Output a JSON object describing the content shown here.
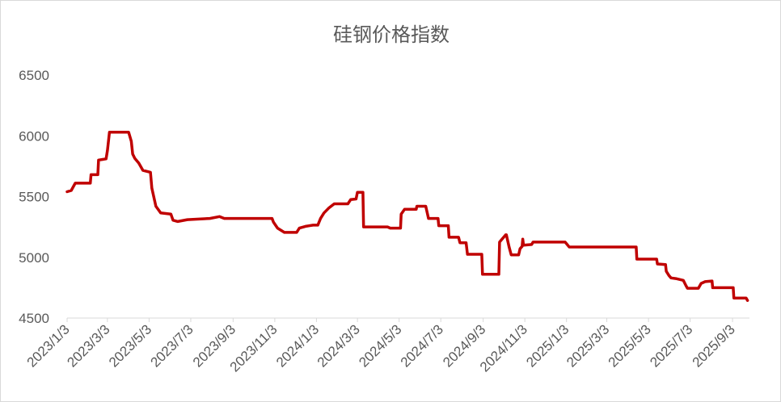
{
  "chart_data": {
    "type": "line",
    "title": "硅钢价格指数",
    "xlabel": "",
    "ylabel": "",
    "ylim": [
      4500,
      6500
    ],
    "yticks": [
      4500,
      5000,
      5500,
      6000,
      6500
    ],
    "xticks": [
      "2023/1/3",
      "2023/3/3",
      "2023/5/3",
      "2023/7/3",
      "2023/9/3",
      "2023/11/3",
      "2024/1/3",
      "2024/3/3",
      "2024/5/3",
      "2024/7/3",
      "2024/9/3",
      "2024/11/3",
      "2025/1/3",
      "2025/3/3",
      "2025/5/3",
      "2025/7/3",
      "2025/9/3"
    ],
    "grid": false,
    "legend": "none",
    "color": "#c00000",
    "series": [
      {
        "points": [
          [
            "2023/1/3",
            5540
          ],
          [
            "2023/1/9",
            5550
          ],
          [
            "2023/1/15",
            5610
          ],
          [
            "2023/2/6",
            5610
          ],
          [
            "2023/2/7",
            5680
          ],
          [
            "2023/2/17",
            5680
          ],
          [
            "2023/2/18",
            5800
          ],
          [
            "2023/3/1",
            5810
          ],
          [
            "2023/3/3",
            5880
          ],
          [
            "2023/3/6",
            6030
          ],
          [
            "2023/4/3",
            6030
          ],
          [
            "2023/4/7",
            5955
          ],
          [
            "2023/4/9",
            5850
          ],
          [
            "2023/4/12",
            5815
          ],
          [
            "2023/4/18",
            5775
          ],
          [
            "2023/4/24",
            5715
          ],
          [
            "2023/5/5",
            5700
          ],
          [
            "2023/5/7",
            5570
          ],
          [
            "2023/5/13",
            5420
          ],
          [
            "2023/5/20",
            5365
          ],
          [
            "2023/6/4",
            5355
          ],
          [
            "2023/6/7",
            5305
          ],
          [
            "2023/6/14",
            5295
          ],
          [
            "2023/6/28",
            5310
          ],
          [
            "2023/7/31",
            5320
          ],
          [
            "2023/8/14",
            5335
          ],
          [
            "2023/8/21",
            5320
          ],
          [
            "2023/10/30",
            5320
          ],
          [
            "2023/11/1",
            5290
          ],
          [
            "2023/11/7",
            5240
          ],
          [
            "2023/11/17",
            5205
          ],
          [
            "2023/12/5",
            5205
          ],
          [
            "2023/12/9",
            5240
          ],
          [
            "2023/12/18",
            5255
          ],
          [
            "2023/12/29",
            5265
          ],
          [
            "2024/1/5",
            5265
          ],
          [
            "2024/1/9",
            5320
          ],
          [
            "2024/1/14",
            5365
          ],
          [
            "2024/1/21",
            5405
          ],
          [
            "2024/1/29",
            5440
          ],
          [
            "2024/2/18",
            5440
          ],
          [
            "2024/2/22",
            5475
          ],
          [
            "2024/3/1",
            5480
          ],
          [
            "2024/3/3",
            5535
          ],
          [
            "2024/3/11",
            5535
          ],
          [
            "2024/3/12",
            5250
          ],
          [
            "2024/4/16",
            5250
          ],
          [
            "2024/4/20",
            5240
          ],
          [
            "2024/5/5",
            5240
          ],
          [
            "2024/5/6",
            5355
          ],
          [
            "2024/5/11",
            5395
          ],
          [
            "2024/5/28",
            5395
          ],
          [
            "2024/5/29",
            5420
          ],
          [
            "2024/6/11",
            5420
          ],
          [
            "2024/6/15",
            5320
          ],
          [
            "2024/6/29",
            5320
          ],
          [
            "2024/6/30",
            5260
          ],
          [
            "2024/7/14",
            5260
          ],
          [
            "2024/7/15",
            5165
          ],
          [
            "2024/7/29",
            5165
          ],
          [
            "2024/7/31",
            5120
          ],
          [
            "2024/8/9",
            5120
          ],
          [
            "2024/8/11",
            5025
          ],
          [
            "2024/9/1",
            5025
          ],
          [
            "2024/9/2",
            4860
          ],
          [
            "2024/9/26",
            4860
          ],
          [
            "2024/9/27",
            5125
          ],
          [
            "2024/10/6",
            5185
          ],
          [
            "2024/10/7",
            5185
          ],
          [
            "2024/10/11",
            5085
          ],
          [
            "2024/10/14",
            5020
          ],
          [
            "2024/10/25",
            5020
          ],
          [
            "2024/10/27",
            5070
          ],
          [
            "2024/10/30",
            5090
          ],
          [
            "2024/10/31",
            5150
          ],
          [
            "2024/11/1",
            5100
          ],
          [
            "2024/11/13",
            5105
          ],
          [
            "2024/11/15",
            5125
          ],
          [
            "2025/1/1",
            5125
          ],
          [
            "2025/1/7",
            5085
          ],
          [
            "2025/4/15",
            5085
          ],
          [
            "2025/4/16",
            4985
          ],
          [
            "2025/5/15",
            4985
          ],
          [
            "2025/5/16",
            4945
          ],
          [
            "2025/5/28",
            4940
          ],
          [
            "2025/5/29",
            4885
          ],
          [
            "2025/6/2",
            4850
          ],
          [
            "2025/6/5",
            4830
          ],
          [
            "2025/6/12",
            4825
          ],
          [
            "2025/6/23",
            4810
          ],
          [
            "2025/6/27",
            4765
          ],
          [
            "2025/6/29",
            4745
          ],
          [
            "2025/7/15",
            4745
          ],
          [
            "2025/7/19",
            4785
          ],
          [
            "2025/7/25",
            4800
          ],
          [
            "2025/8/4",
            4805
          ],
          [
            "2025/8/5",
            4750
          ],
          [
            "2025/9/4",
            4750
          ],
          [
            "2025/9/5",
            4665
          ],
          [
            "2025/9/23",
            4665
          ],
          [
            "2025/9/25",
            4645
          ]
        ]
      }
    ]
  }
}
